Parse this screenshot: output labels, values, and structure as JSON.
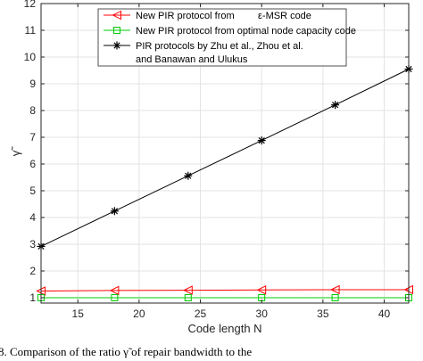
{
  "chart_data": {
    "type": "line",
    "xlabel": "Code length N",
    "ylabel": "γ̃",
    "xlim": [
      12,
      42
    ],
    "ylim": [
      0.8,
      12
    ],
    "xticks": [
      15,
      20,
      25,
      30,
      35,
      40
    ],
    "yticks": [
      1,
      2,
      3,
      4,
      5,
      6,
      7,
      8,
      9,
      10,
      11,
      12
    ],
    "grid": true,
    "legend_position": "top-center",
    "x": [
      12,
      18,
      24,
      30,
      36,
      42
    ],
    "series": [
      {
        "name_parts": [
          "New PIR protocol from",
          "ε-MSR code"
        ],
        "marker": "triangle-left",
        "color": "#ff0000",
        "values": [
          1.25,
          1.27,
          1.28,
          1.29,
          1.3,
          1.3
        ]
      },
      {
        "name_parts": [
          "New PIR protocol from optimal node capacity code"
        ],
        "marker": "square",
        "color": "#00cc00",
        "values": [
          1.0,
          1.0,
          1.0,
          1.0,
          1.0,
          1.0
        ]
      },
      {
        "name_parts": [
          "PIR protocols by Zhu et al., Zhou et al.",
          "and Banawan and Ulukus"
        ],
        "marker": "asterisk",
        "color": "#000000",
        "values": [
          2.92,
          4.24,
          5.56,
          6.88,
          8.21,
          9.55
        ]
      }
    ]
  },
  "caption": {
    "text": "8.    Comparison of the ratio γ̃ of repair bandwidth to the"
  }
}
